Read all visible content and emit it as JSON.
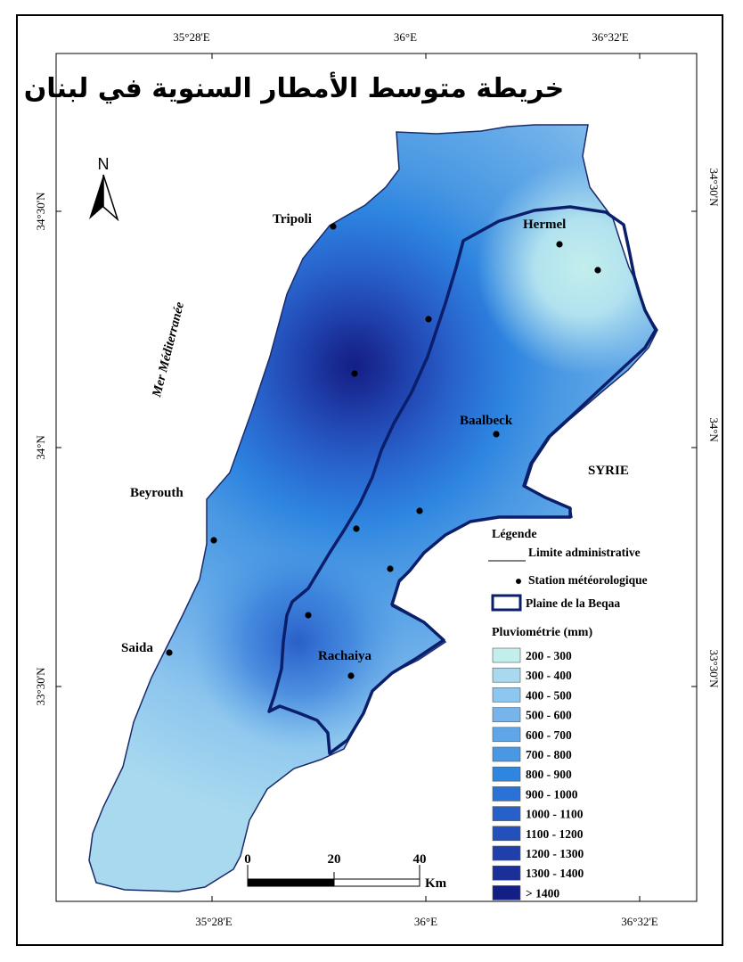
{
  "title": "خريطة متوسط الأمطار السنوية في لبنان",
  "north_arrow": {
    "label": "N",
    "icon": "north-arrow-icon"
  },
  "coordinates": {
    "top": [
      "35°28'E",
      "36°E",
      "36°32'E"
    ],
    "bottom": [
      "35°28'E",
      "36°E",
      "36°32'E"
    ],
    "left": [
      "34°30'N",
      "34°N",
      "33°30'N"
    ],
    "right": [
      "34°30'N",
      "34°N",
      "33°30'N"
    ]
  },
  "labels": {
    "sea": "Mer Méditerranée",
    "syria": "SYRIE",
    "cities": [
      "Tripoli",
      "Hermel",
      "Baalbeck",
      "Beyrouth",
      "Saida",
      "Rachaiya"
    ]
  },
  "legend": {
    "title": "Légende",
    "items": [
      "Limite administrative",
      "Station météorologique",
      "Plaine de la Beqaa"
    ],
    "rain_title": "Pluviométrie (mm)",
    "classes": [
      {
        "label": "200 - 300",
        "color": "#c2eeec"
      },
      {
        "label": "300 - 400",
        "color": "#a8d9ef"
      },
      {
        "label": "400 - 500",
        "color": "#8dc6ee"
      },
      {
        "label": "500 - 600",
        "color": "#76b4ea"
      },
      {
        "label": "600 - 700",
        "color": "#5ea6e7"
      },
      {
        "label": "700 - 800",
        "color": "#4a98e3"
      },
      {
        "label": "800 - 900",
        "color": "#2f86e0"
      },
      {
        "label": "900 - 1000",
        "color": "#2a72d6"
      },
      {
        "label": "1000 - 1100",
        "color": "#2860c9"
      },
      {
        "label": "1100 - 1200",
        "color": "#2450bb"
      },
      {
        "label": "1200 - 1300",
        "color": "#1f40ab"
      },
      {
        "label": "1300 - 1400",
        "color": "#1a2f98"
      },
      {
        "label": "> 1400",
        "color": "#131f84"
      }
    ]
  },
  "scale_bar": {
    "ticks": [
      "0",
      "20",
      "40"
    ],
    "unit": "Km"
  },
  "colors": {
    "beqaa_outline": "#0b1e6b",
    "ink": "#000000"
  }
}
